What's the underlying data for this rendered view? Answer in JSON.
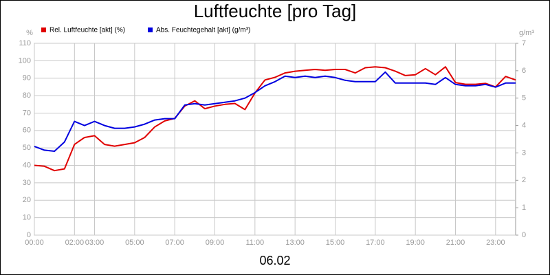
{
  "chart_data": {
    "type": "line",
    "title": "Luftfeuchte [pro Tag]",
    "xlabel": "06.02",
    "ylabel": "%",
    "y2label": "g/m³",
    "x": [
      0,
      0.5,
      1,
      1.5,
      2,
      2.5,
      3,
      3.5,
      4,
      4.5,
      5,
      5.5,
      6,
      6.5,
      7,
      7.5,
      8,
      8.5,
      9,
      9.5,
      10,
      10.5,
      11,
      11.5,
      12,
      12.5,
      13,
      13.5,
      14,
      14.5,
      15,
      15.5,
      16,
      16.5,
      17,
      17.5,
      18,
      18.5,
      19,
      19.5,
      20,
      20.5,
      21,
      21.5,
      22,
      22.5,
      23,
      23.5,
      24
    ],
    "series": [
      {
        "name": "Rel. Luftfeuchte [akt] (%)",
        "color": "#e00000",
        "axis": "y",
        "values": [
          40,
          39.5,
          37,
          38,
          52,
          56,
          57,
          52,
          51,
          52,
          53,
          56,
          62,
          65.5,
          67,
          74,
          77,
          72.5,
          74,
          75,
          75.5,
          72,
          81.5,
          89,
          90.5,
          93,
          94,
          94.5,
          95,
          94.5,
          95,
          95,
          93,
          96,
          96.5,
          96,
          94,
          91.5,
          92,
          95.5,
          92,
          96.5,
          87.5,
          86.5,
          86.5,
          87,
          85,
          91,
          89
        ]
      },
      {
        "name": "Abs. Feuchtegehalt [akt] (g/m³)",
        "color": "#0000e0",
        "axis": "y2",
        "values": [
          3.24,
          3.1,
          3.06,
          3.4,
          4.15,
          4.0,
          4.15,
          4.0,
          3.9,
          3.9,
          3.95,
          4.05,
          4.2,
          4.25,
          4.25,
          4.75,
          4.8,
          4.75,
          4.8,
          4.85,
          4.9,
          5.0,
          5.2,
          5.45,
          5.6,
          5.8,
          5.75,
          5.8,
          5.75,
          5.8,
          5.75,
          5.65,
          5.6,
          5.6,
          5.6,
          5.95,
          5.55,
          5.55,
          5.55,
          5.55,
          5.5,
          5.75,
          5.5,
          5.45,
          5.45,
          5.5,
          5.4,
          5.55,
          5.55
        ]
      }
    ],
    "xlim": [
      0,
      24
    ],
    "xticks": [
      {
        "value": 0,
        "label": "00:00"
      },
      {
        "value": 2,
        "label": "02:00"
      },
      {
        "value": 3,
        "label": "03:00"
      },
      {
        "value": 5,
        "label": "05:00"
      },
      {
        "value": 7,
        "label": "07:00"
      },
      {
        "value": 9,
        "label": "09:00"
      },
      {
        "value": 11,
        "label": "11:00"
      },
      {
        "value": 13,
        "label": "13:00"
      },
      {
        "value": 15,
        "label": "15:00"
      },
      {
        "value": 17,
        "label": "17:00"
      },
      {
        "value": 19,
        "label": "19:00"
      },
      {
        "value": 21,
        "label": "21:00"
      },
      {
        "value": 23,
        "label": "23:00"
      }
    ],
    "ylim": [
      0,
      110
    ],
    "yticks": [
      0,
      10,
      20,
      30,
      40,
      50,
      60,
      70,
      80,
      90,
      100,
      110
    ],
    "y2lim": [
      0,
      7
    ],
    "y2ticks": [
      0,
      1,
      2,
      3,
      4,
      5,
      6,
      7
    ],
    "grid": true
  }
}
